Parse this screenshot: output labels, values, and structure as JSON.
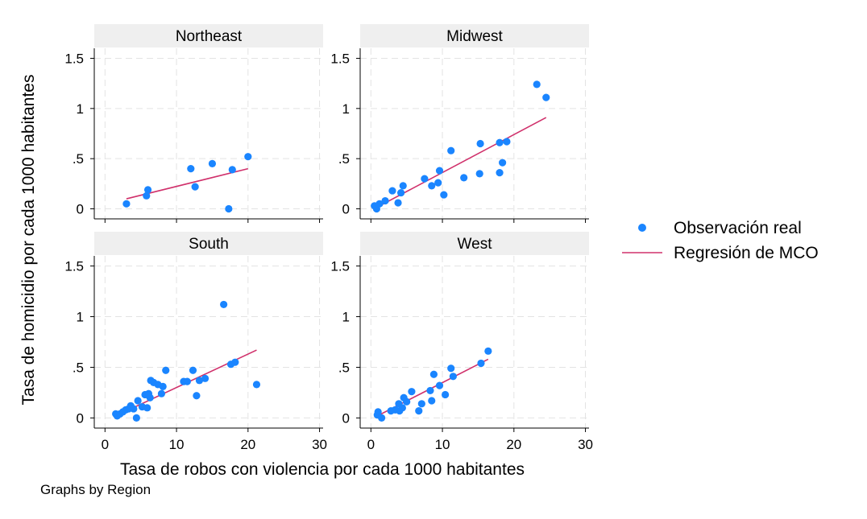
{
  "chart_data": {
    "type": "scatter",
    "xlabel": "Tasa de robos con violencia por cada 1000 habitantes",
    "ylabel": "Tasa de homicidio por cada 1000 habitantes",
    "note": "Graphs by Region",
    "xlim": [
      -1.5,
      30.5
    ],
    "ylim": [
      -0.1,
      1.6
    ],
    "xticks": [
      0,
      10,
      20,
      30
    ],
    "yticks": [
      0,
      0.5,
      1,
      1.5
    ],
    "ytick_labels": [
      "0",
      ".5",
      "1",
      "1.5"
    ],
    "grid": true,
    "legend": {
      "position": "right",
      "entries": [
        "Observación real",
        "Regresión de MCO"
      ]
    },
    "colors": {
      "points": "#1a85ff",
      "line": "#d0306b",
      "strip": "#efefef",
      "grid": "#e3e3e3"
    },
    "panels": [
      {
        "title": "Northeast",
        "points": [
          [
            3,
            0.05
          ],
          [
            5.8,
            0.13
          ],
          [
            6,
            0.19
          ],
          [
            12,
            0.4
          ],
          [
            12.6,
            0.22
          ],
          [
            15,
            0.45
          ],
          [
            17.3,
            0
          ],
          [
            17.8,
            0.39
          ],
          [
            20,
            0.52
          ]
        ],
        "fit": [
          [
            3,
            0.1
          ],
          [
            20,
            0.4
          ]
        ]
      },
      {
        "title": "Midwest",
        "points": [
          [
            0.5,
            0.03
          ],
          [
            0.8,
            0
          ],
          [
            1.2,
            0.05
          ],
          [
            2,
            0.08
          ],
          [
            3,
            0.18
          ],
          [
            3.8,
            0.06
          ],
          [
            4.2,
            0.16
          ],
          [
            4.5,
            0.23
          ],
          [
            7.5,
            0.3
          ],
          [
            8.5,
            0.23
          ],
          [
            9.4,
            0.26
          ],
          [
            9.6,
            0.38
          ],
          [
            10.2,
            0.14
          ],
          [
            11.2,
            0.58
          ],
          [
            13,
            0.31
          ],
          [
            15.2,
            0.35
          ],
          [
            15.3,
            0.65
          ],
          [
            18,
            0.36
          ],
          [
            18,
            0.66
          ],
          [
            18.4,
            0.46
          ],
          [
            19,
            0.67
          ],
          [
            23.2,
            1.24
          ],
          [
            24.5,
            1.11
          ]
        ],
        "fit": [
          [
            0.7,
            0.01
          ],
          [
            24.5,
            0.91
          ]
        ]
      },
      {
        "title": "South",
        "points": [
          [
            1.5,
            0.04
          ],
          [
            1.7,
            0.02
          ],
          [
            2.1,
            0.04
          ],
          [
            2.5,
            0.06
          ],
          [
            2.9,
            0.08
          ],
          [
            3.3,
            0.09
          ],
          [
            3.6,
            0.12
          ],
          [
            4,
            0.09
          ],
          [
            4.6,
            0.17
          ],
          [
            4.4,
            0
          ],
          [
            5.2,
            0.11
          ],
          [
            5.6,
            0.23
          ],
          [
            5.9,
            0.1
          ],
          [
            6.3,
            0.2
          ],
          [
            6.4,
            0.37
          ],
          [
            6.1,
            0.24
          ],
          [
            6.8,
            0.35
          ],
          [
            7.4,
            0.33
          ],
          [
            7.9,
            0.24
          ],
          [
            8.1,
            0.31
          ],
          [
            8.5,
            0.47
          ],
          [
            11,
            0.36
          ],
          [
            11.5,
            0.36
          ],
          [
            12.3,
            0.47
          ],
          [
            12.8,
            0.22
          ],
          [
            13.2,
            0.37
          ],
          [
            14,
            0.39
          ],
          [
            16.6,
            1.12
          ],
          [
            17.6,
            0.53
          ],
          [
            18.2,
            0.55
          ],
          [
            21.2,
            0.33
          ]
        ],
        "fit": [
          [
            1.5,
            0.02
          ],
          [
            21.2,
            0.67
          ]
        ]
      },
      {
        "title": "West",
        "points": [
          [
            0.9,
            0.03
          ],
          [
            1,
            0.06
          ],
          [
            1.5,
            0
          ],
          [
            2.8,
            0.07
          ],
          [
            3.4,
            0.08
          ],
          [
            3.9,
            0.14
          ],
          [
            4,
            0.07
          ],
          [
            4.4,
            0.1
          ],
          [
            4.6,
            0.2
          ],
          [
            5,
            0.16
          ],
          [
            5.7,
            0.26
          ],
          [
            6.7,
            0.07
          ],
          [
            7.1,
            0.14
          ],
          [
            8.3,
            0.27
          ],
          [
            8.5,
            0.17
          ],
          [
            8.8,
            0.43
          ],
          [
            9.6,
            0.32
          ],
          [
            10.4,
            0.23
          ],
          [
            11.2,
            0.49
          ],
          [
            11.5,
            0.41
          ],
          [
            15.4,
            0.54
          ],
          [
            16.4,
            0.66
          ]
        ],
        "fit": [
          [
            0.9,
            0.02
          ],
          [
            16.4,
            0.58
          ]
        ]
      }
    ]
  }
}
